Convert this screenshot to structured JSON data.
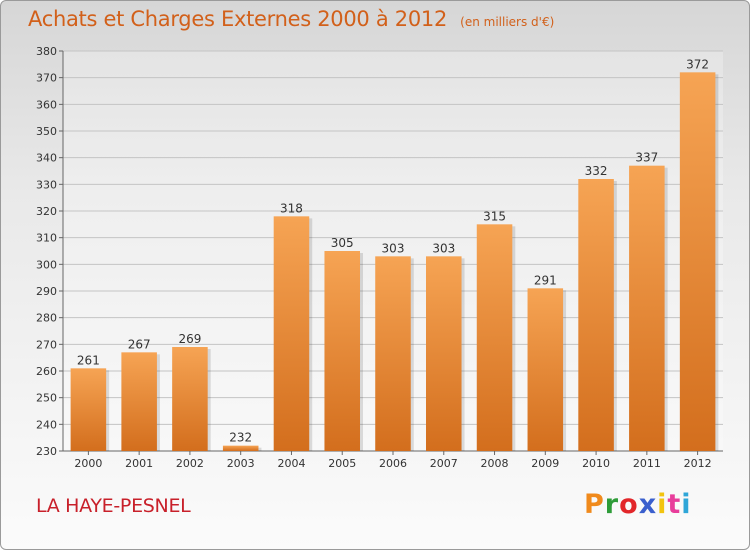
{
  "header": {
    "title": "Achats et Charges Externes 2000 à 2012",
    "unit": "(en milliers d'€)"
  },
  "footer": {
    "location": "LA HAYE-PESNEL",
    "brand": "Proxiti",
    "brand_colors": [
      "#f08a1c",
      "#2e9c38",
      "#e2262a",
      "#3a5fcd",
      "#f2c40f",
      "#e83d9b",
      "#2ea6d8"
    ]
  },
  "colors": {
    "bar_light": "#f6a454",
    "bar_dark": "#d36e1d",
    "title": "#d2601a",
    "location": "#c8202a"
  },
  "chart_data": {
    "type": "bar",
    "title": "Achats et Charges Externes 2000 à 2012",
    "subtitle": "(en milliers d'€)",
    "categories": [
      "2000",
      "2001",
      "2002",
      "2003",
      "2004",
      "2005",
      "2006",
      "2007",
      "2008",
      "2009",
      "2010",
      "2011",
      "2012"
    ],
    "values": [
      261,
      267,
      269,
      232,
      318,
      305,
      303,
      303,
      315,
      291,
      332,
      337,
      372
    ],
    "ylim": [
      230,
      380
    ],
    "yticks": [
      230,
      240,
      250,
      260,
      270,
      280,
      290,
      300,
      310,
      320,
      330,
      340,
      350,
      360,
      370,
      380
    ],
    "grid": true,
    "data_labels": true
  }
}
